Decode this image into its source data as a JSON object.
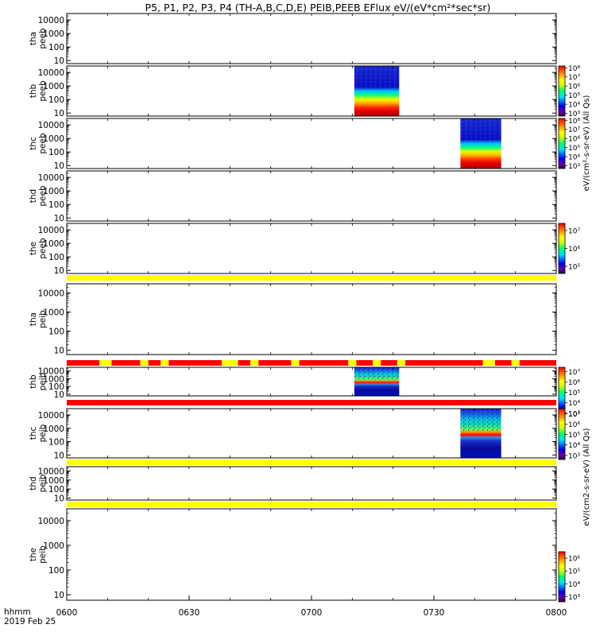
{
  "title": "P5, P1, P2, P3, P4 (TH-A,B,C,D,E) PEIB,PEEB EFlux eV/(eV*cm²*sec*sr)",
  "time_axis": {
    "ticks": [
      "0600",
      "0630",
      "0700",
      "0730",
      "0800"
    ],
    "start_min": 360,
    "end_min": 480,
    "label_line1": "hhmm",
    "label_line2": "2019 Feb 25"
  },
  "colorbar_labels": {
    "peeb": "eV/(cm²-s-sr-eV) (All Qs)",
    "peib": "eV/(cm2-s-sr-eV) (All Qs)"
  },
  "chart_data": {
    "type": "heatmap",
    "y_axis": {
      "scale": "log",
      "ticks": [
        "10",
        "100",
        "1000",
        "10000"
      ],
      "range": [
        6,
        30000
      ]
    },
    "panels": [
      {
        "probe": "tha",
        "species": "peeb",
        "data": [],
        "colorbar": null
      },
      {
        "probe": "thb",
        "species": "peeb",
        "data": [
          {
            "t_start_min": 430.5,
            "t_end_min": 441.5
          }
        ],
        "colorbar": {
          "ticks": [
            "10³",
            "10⁴",
            "10⁵",
            "10⁶",
            "10⁷",
            "10⁸"
          ],
          "log_range": [
            2.7,
            8.2
          ]
        }
      },
      {
        "probe": "thc",
        "species": "peeb",
        "data": [
          {
            "t_start_min": 456.5,
            "t_end_min": 466.5
          }
        ],
        "colorbar": {
          "ticks": [
            "10³",
            "10⁴",
            "10⁵",
            "10⁶",
            "10⁷",
            "10⁸"
          ],
          "log_range": [
            2.7,
            8.2
          ]
        }
      },
      {
        "probe": "thd",
        "species": "peeb",
        "data": [],
        "colorbar": null
      },
      {
        "probe": "the",
        "species": "peeb",
        "data": [],
        "colorbar": {
          "ticks": [
            "10⁵",
            "10⁶",
            "10⁷"
          ],
          "log_range": [
            4.6,
            7.4
          ]
        }
      },
      {
        "probe": "tha",
        "species": "peib",
        "data": [],
        "colorbar": null
      },
      {
        "probe": "thb",
        "species": "peib",
        "data": [
          {
            "t_start_min": 430.5,
            "t_end_min": 441.5
          }
        ],
        "colorbar": {
          "ticks": [
            "10³",
            "10⁴",
            "10⁵",
            "10⁶",
            "10⁷"
          ],
          "log_range": [
            2.6,
            7.4
          ]
        }
      },
      {
        "probe": "thc",
        "species": "peib",
        "data": [
          {
            "t_start_min": 456.5,
            "t_end_min": 466.5
          }
        ],
        "colorbar": {
          "ticks": [
            "10³",
            "10⁴",
            "10⁵",
            "10⁶",
            "10⁷"
          ],
          "log_range": [
            2.6,
            7.5
          ]
        }
      },
      {
        "probe": "thd",
        "species": "peib",
        "data": [],
        "colorbar": null
      },
      {
        "probe": "the",
        "species": "peib",
        "data": [],
        "colorbar": {
          "ticks": [
            "10³",
            "10⁴",
            "10⁵",
            "10⁶"
          ],
          "log_range": [
            2.6,
            6.5
          ]
        }
      }
    ],
    "quality_bars": [
      {
        "after_panel": 4,
        "color": "yellow",
        "segments": []
      },
      {
        "after_panel": 5,
        "color": "red",
        "segments": [
          [
            368,
            371
          ],
          [
            378,
            380
          ],
          [
            383,
            385
          ],
          [
            398,
            402
          ],
          [
            405,
            407
          ],
          [
            415,
            417
          ],
          [
            429,
            431
          ],
          [
            435,
            437
          ],
          [
            441,
            443
          ],
          [
            462,
            465
          ],
          [
            469,
            471
          ]
        ]
      },
      {
        "after_panel": 6,
        "color": "red",
        "segments": []
      },
      {
        "after_panel": 7,
        "color": "yellow",
        "segments": []
      },
      {
        "after_panel": 8,
        "color": "yellow",
        "segments": []
      }
    ]
  }
}
